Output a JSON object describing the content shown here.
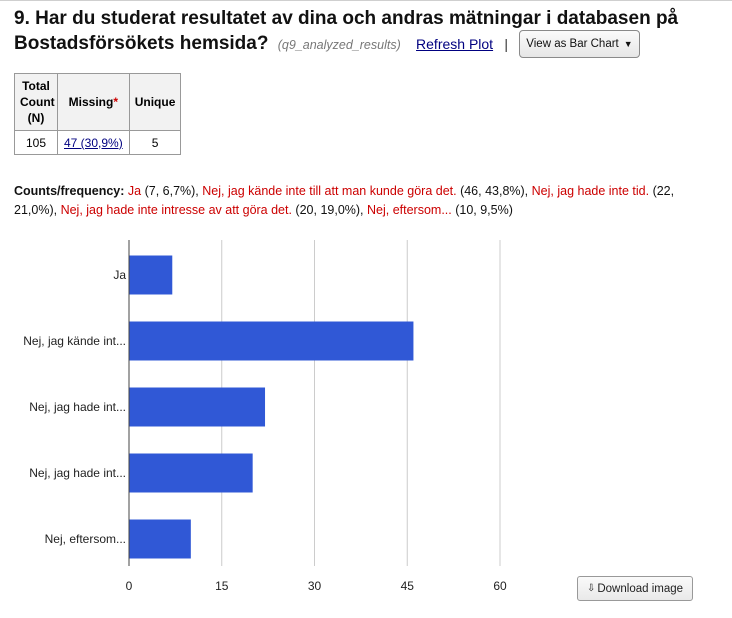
{
  "question": {
    "title": "9. Har du studerat resultatet av dina och andras mätningar i databasen på Bostadsförsökets hemsida?",
    "varname": "(q9_analyzed_results)",
    "refresh_label": "Refresh Plot",
    "separator": "|",
    "view_select": "View as Bar Chart"
  },
  "stats": {
    "headers": [
      "Total Count (N)",
      "Missing",
      "Unique"
    ],
    "missing_marker": "*",
    "total": "105",
    "missing": "47 (30,9%)",
    "unique": "5"
  },
  "counts": {
    "label": "Counts/frequency:",
    "items": [
      {
        "name": "Ja",
        "detail": " (7, 6,7%), "
      },
      {
        "name": "Nej, jag kände inte till att man kunde göra det.",
        "detail": " (46, 43,8%), "
      },
      {
        "name": "Nej, jag hade inte tid.",
        "detail": " (22, 21,0%), "
      },
      {
        "name": "Nej, jag hade inte intresse av att göra det.",
        "detail": " (20, 19,0%), "
      },
      {
        "name": "Nej, eftersom...",
        "detail": " (10, 9,5%)"
      }
    ]
  },
  "chart_data": {
    "type": "bar",
    "orientation": "horizontal",
    "categories": [
      "Ja",
      "Nej, jag kände int...",
      "Nej, jag hade int...",
      "Nej, jag hade int...",
      "Nej, eftersom..."
    ],
    "values": [
      7,
      46,
      22,
      20,
      10
    ],
    "xlim": [
      0,
      60
    ],
    "xticks": [
      "0",
      "15",
      "30",
      "45",
      "60"
    ],
    "grid": true,
    "bar_color": "#3058d6",
    "grid_color": "#cccccc"
  },
  "download_label": "Download image",
  "colors": {
    "accent_red": "#cc0000",
    "link": "#000080"
  }
}
